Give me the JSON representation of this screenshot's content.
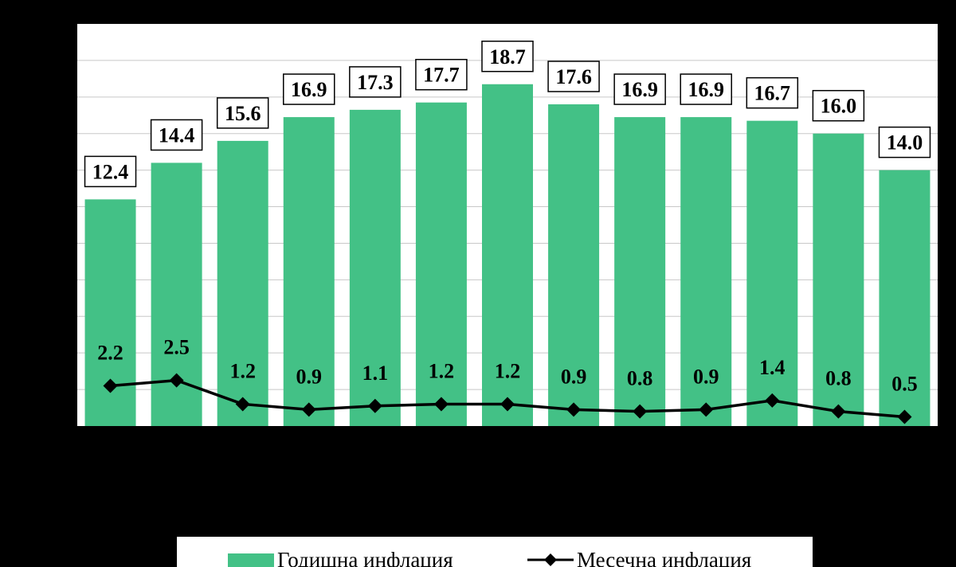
{
  "chart_data": {
    "type": "bar",
    "categories": [
      "",
      "",
      "",
      "",
      "",
      "",
      "",
      "",
      "",
      "",
      "",
      "",
      ""
    ],
    "series": [
      {
        "name": "Годишна инфлация",
        "type": "bar",
        "color": "#43c186",
        "values": [
          12.4,
          14.4,
          15.6,
          16.9,
          17.3,
          17.7,
          18.7,
          17.6,
          16.9,
          16.9,
          16.7,
          16.0,
          14.0
        ],
        "labels": [
          "12.4",
          "14.4",
          "15.6",
          "16.9",
          "17.3",
          "17.7",
          "18.7",
          "17.6",
          "16.9",
          "16.9",
          "16.7",
          "16.0",
          "14.0"
        ]
      },
      {
        "name": "Месечна инфлация",
        "type": "line",
        "color": "#000000",
        "marker": "diamond",
        "values": [
          2.2,
          2.5,
          1.2,
          0.9,
          1.1,
          1.2,
          1.2,
          0.9,
          0.8,
          0.9,
          1.4,
          0.8,
          0.5
        ],
        "labels": [
          "2.2",
          "2.5",
          "1.2",
          "0.9",
          "1.1",
          "1.2",
          "1.2",
          "0.9",
          "0.8",
          "0.9",
          "1.4",
          "0.8",
          "0.5"
        ]
      }
    ],
    "ylim": [
      0,
      22
    ],
    "grid": true,
    "legend_position": "bottom"
  },
  "legend": {
    "bar_label": "Годишна инфлация",
    "line_label": "Месечна инфлация"
  }
}
